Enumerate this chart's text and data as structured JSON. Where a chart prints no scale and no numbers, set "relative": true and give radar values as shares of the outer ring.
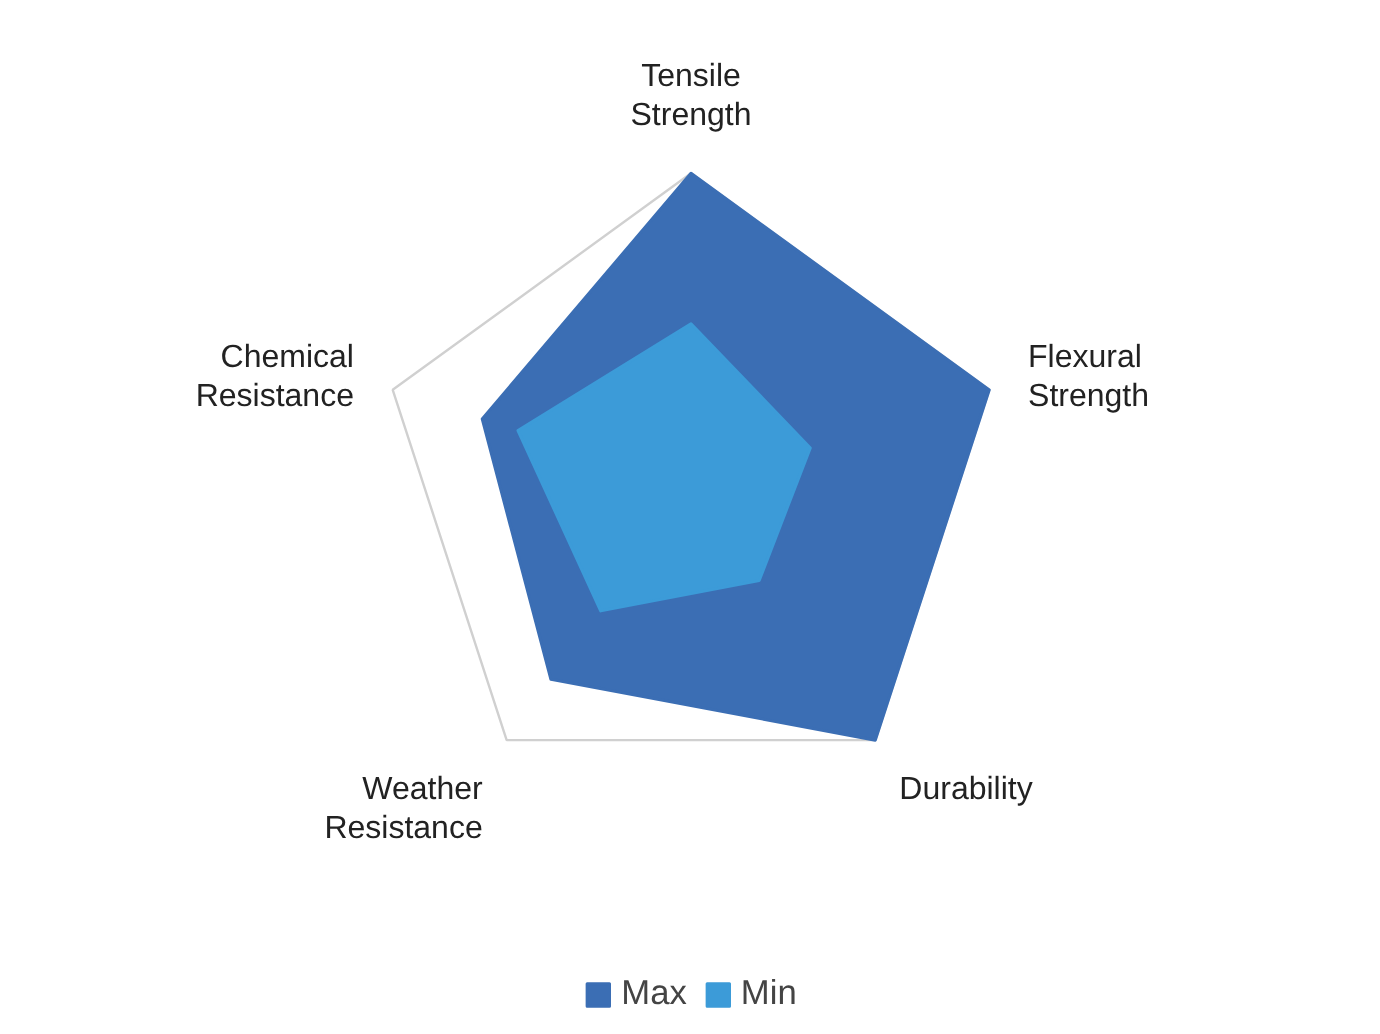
{
  "chart_data": {
    "type": "radar",
    "relative": true,
    "categories": [
      "Tensile\nStrength",
      "Flexural\nStrength",
      "Durability",
      "Weather\nResistance",
      "Chemical\nResistance"
    ],
    "series": [
      {
        "name": "Max",
        "color": "#3b6eb4",
        "values": [
          1,
          1,
          1,
          0.76,
          0.7
        ]
      },
      {
        "name": "Min",
        "color": "#3c9bd8",
        "values": [
          0.52,
          0.4,
          0.37,
          0.49,
          0.58
        ]
      }
    ],
    "grid": true,
    "legend": "bottom"
  }
}
